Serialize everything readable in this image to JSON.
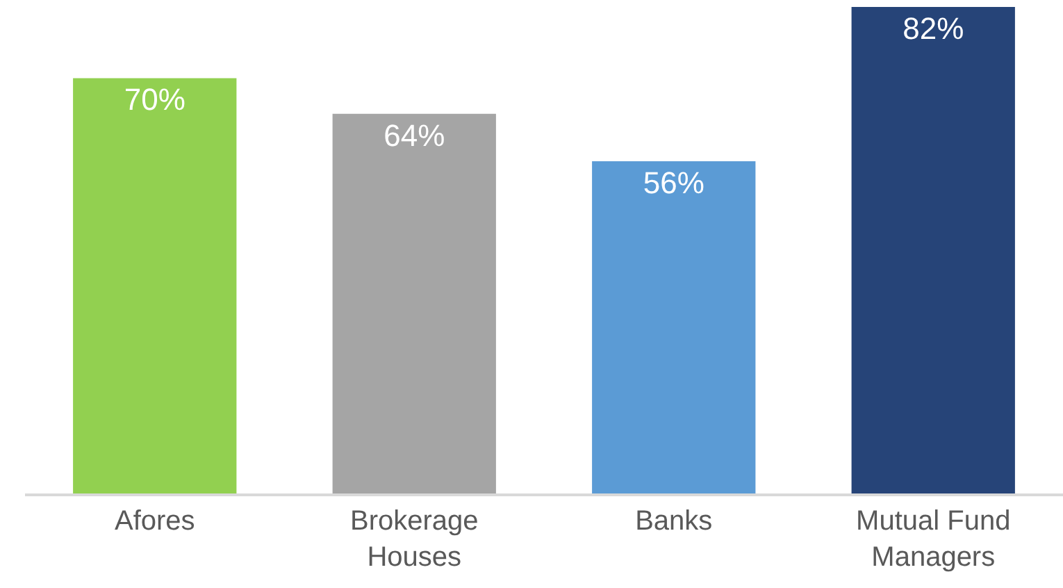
{
  "chart_data": {
    "type": "bar",
    "categories": [
      "Afores",
      "Brokerage Houses",
      "Banks",
      "Mutual Fund Managers"
    ],
    "values": [
      70,
      64,
      56,
      82
    ],
    "colors": [
      "#92d050",
      "#a5a5a5",
      "#5b9bd5",
      "#264478"
    ],
    "value_labels": [
      "70%",
      "64%",
      "56%",
      "82%"
    ]
  }
}
